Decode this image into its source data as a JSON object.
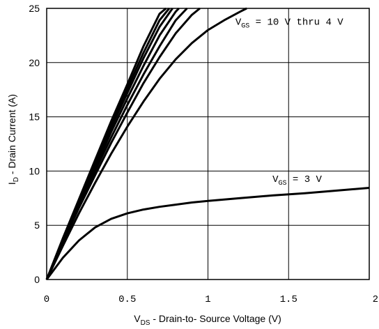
{
  "chart_data": {
    "type": "line",
    "xlabel": {
      "main": "V",
      "sub": "DS",
      "rest": " - Drain-to- Source Voltage (V)"
    },
    "ylabel": {
      "main": "I",
      "sub": "D",
      "rest": " - Drain Current (A)"
    },
    "xlim": [
      0,
      2
    ],
    "ylim": [
      0,
      25
    ],
    "x_ticks": [
      0,
      0.5,
      1,
      1.5,
      2
    ],
    "x_tick_labels": [
      "0",
      "0.5",
      "1",
      "1.5",
      "2"
    ],
    "y_ticks": [
      0,
      5,
      10,
      15,
      20,
      25
    ],
    "y_tick_labels": [
      "0",
      "5",
      "10",
      "15",
      "20",
      "25"
    ],
    "grid": true,
    "annotations": [
      {
        "main": "V",
        "sub": "GS",
        "rest": " = 10 V thru 4 V",
        "x": 1.17,
        "y": 23.5
      },
      {
        "main": "V",
        "sub": "GS",
        "rest": " = 3 V",
        "x": 1.4,
        "y": 9.0
      }
    ],
    "series": [
      {
        "x": [
          0,
          0.1,
          0.2,
          0.3,
          0.4,
          0.5,
          0.6,
          0.7,
          0.74
        ],
        "y": [
          0,
          3.8,
          7.4,
          11.0,
          14.6,
          18.0,
          21.5,
          24.5,
          25
        ]
      },
      {
        "x": [
          0,
          0.1,
          0.2,
          0.3,
          0.4,
          0.5,
          0.6,
          0.7,
          0.76
        ],
        "y": [
          0,
          3.7,
          7.3,
          10.8,
          14.3,
          17.6,
          20.9,
          23.9,
          25
        ]
      },
      {
        "x": [
          0,
          0.1,
          0.2,
          0.3,
          0.4,
          0.5,
          0.6,
          0.7,
          0.78
        ],
        "y": [
          0,
          3.65,
          7.2,
          10.6,
          14.0,
          17.2,
          20.4,
          23.3,
          25
        ]
      },
      {
        "x": [
          0,
          0.1,
          0.2,
          0.3,
          0.4,
          0.5,
          0.6,
          0.7,
          0.8,
          0.82
        ],
        "y": [
          0,
          3.6,
          7.0,
          10.3,
          13.6,
          16.7,
          19.7,
          22.5,
          24.7,
          25
        ]
      },
      {
        "x": [
          0,
          0.1,
          0.2,
          0.3,
          0.4,
          0.5,
          0.6,
          0.7,
          0.8,
          0.87
        ],
        "y": [
          0,
          3.5,
          6.8,
          10.0,
          13.1,
          16.1,
          18.9,
          21.5,
          23.9,
          25
        ]
      },
      {
        "x": [
          0,
          0.1,
          0.2,
          0.3,
          0.4,
          0.5,
          0.6,
          0.7,
          0.8,
          0.9,
          0.95
        ],
        "y": [
          0,
          3.4,
          6.6,
          9.6,
          12.6,
          15.4,
          18.1,
          20.5,
          22.7,
          24.4,
          25
        ]
      },
      {
        "x": [
          0,
          0.1,
          0.2,
          0.3,
          0.4,
          0.5,
          0.6,
          0.7,
          0.8,
          0.9,
          1.0,
          1.1,
          1.2,
          1.24
        ],
        "y": [
          0,
          3.1,
          6.1,
          8.9,
          11.6,
          14.1,
          16.4,
          18.5,
          20.3,
          21.8,
          23.0,
          23.9,
          24.7,
          25
        ]
      },
      {
        "x": [
          0,
          0.1,
          0.2,
          0.3,
          0.4,
          0.5,
          0.6,
          0.7,
          0.8,
          0.9,
          1.0,
          1.2,
          1.4,
          1.6,
          1.8,
          2.0
        ],
        "y": [
          0,
          2.0,
          3.6,
          4.8,
          5.6,
          6.1,
          6.45,
          6.7,
          6.9,
          7.1,
          7.25,
          7.5,
          7.75,
          7.95,
          8.2,
          8.45
        ]
      }
    ]
  }
}
